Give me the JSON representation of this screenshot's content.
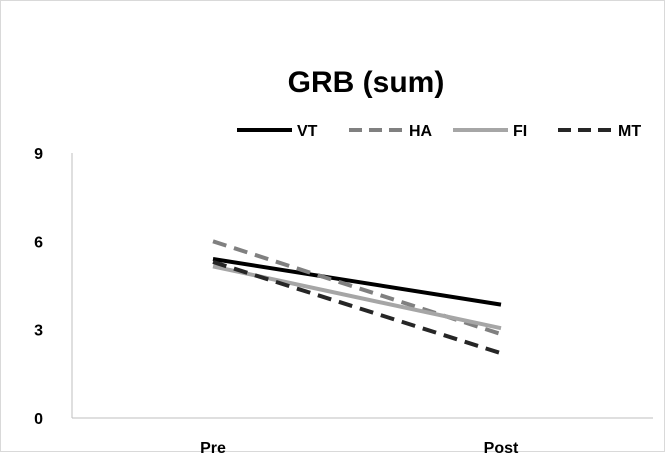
{
  "chart_data": {
    "type": "line",
    "title": "GRB (sum)",
    "xlabel": "",
    "ylabel": "",
    "categories": [
      "Pre",
      "Post"
    ],
    "ylim": [
      0,
      9
    ],
    "yticks": [
      0,
      3,
      6,
      9
    ],
    "grid": false,
    "legend_position": "top",
    "series": [
      {
        "name": "VT",
        "values": [
          5.4,
          3.85
        ],
        "color": "#000000",
        "dash": "solid"
      },
      {
        "name": "HA",
        "values": [
          6.0,
          2.85
        ],
        "color": "#808080",
        "dash": "dashed"
      },
      {
        "name": "FI",
        "values": [
          5.15,
          3.05
        ],
        "color": "#a6a6a6",
        "dash": "solid"
      },
      {
        "name": "MT",
        "values": [
          5.3,
          2.2
        ],
        "color": "#262626",
        "dash": "dashed"
      }
    ]
  }
}
